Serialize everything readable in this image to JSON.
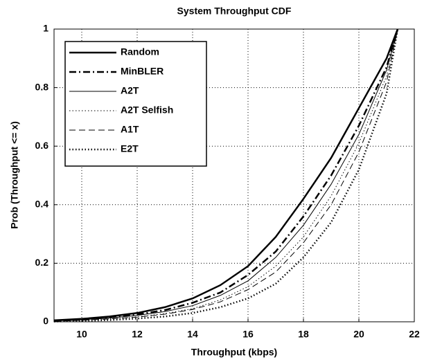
{
  "chart_data": {
    "type": "line",
    "title": "System Throughput CDF",
    "x_label": "Throughput (kbps)",
    "y_label": "Prob (Throughput <= x)",
    "x": [
      9,
      10,
      11,
      12,
      13,
      14,
      15,
      16,
      17,
      18,
      19,
      20,
      21,
      21.4
    ],
    "series": [
      {
        "name": "Random",
        "color": "#000000",
        "line_style": "solid",
        "line_width": 2.5,
        "values": [
          0.005,
          0.01,
          0.018,
          0.03,
          0.05,
          0.08,
          0.125,
          0.19,
          0.29,
          0.42,
          0.56,
          0.73,
          0.9,
          1.0
        ]
      },
      {
        "name": "MinBLER",
        "color": "#000000",
        "line_style": "dashdot",
        "line_width": 2.5,
        "values": [
          0.004,
          0.008,
          0.015,
          0.025,
          0.04,
          0.065,
          0.1,
          0.16,
          0.24,
          0.36,
          0.5,
          0.67,
          0.87,
          1.0
        ]
      },
      {
        "name": "A2T",
        "color": "#000000",
        "line_style": "solid",
        "line_width": 1,
        "values": [
          0.003,
          0.007,
          0.013,
          0.022,
          0.035,
          0.055,
          0.09,
          0.14,
          0.22,
          0.33,
          0.47,
          0.64,
          0.86,
          1.0
        ]
      },
      {
        "name": "A2T Selfish",
        "color": "#000000",
        "line_style": "dotted",
        "line_width": 1,
        "values": [
          0.002,
          0.005,
          0.01,
          0.017,
          0.028,
          0.045,
          0.075,
          0.12,
          0.19,
          0.29,
          0.43,
          0.61,
          0.84,
          1.0
        ]
      },
      {
        "name": "A1T",
        "color": "#000000",
        "line_style": "dashed",
        "line_width": 1,
        "values": [
          0.002,
          0.005,
          0.01,
          0.016,
          0.026,
          0.042,
          0.068,
          0.11,
          0.17,
          0.27,
          0.4,
          0.58,
          0.82,
          1.0
        ]
      },
      {
        "name": "E2T",
        "color": "#000000",
        "line_style": "dotted",
        "line_width": 2.5,
        "values": [
          0.001,
          0.003,
          0.006,
          0.011,
          0.018,
          0.03,
          0.05,
          0.08,
          0.13,
          0.22,
          0.34,
          0.52,
          0.78,
          1.0
        ]
      }
    ],
    "xlim": [
      9,
      22
    ],
    "xticks": [
      10,
      12,
      14,
      16,
      18,
      20,
      22
    ],
    "ylim": [
      0,
      1
    ],
    "yticks": [
      0,
      0.2,
      0.4,
      0.6,
      0.8,
      1
    ],
    "grid": true,
    "legend_position": "upper-left"
  }
}
